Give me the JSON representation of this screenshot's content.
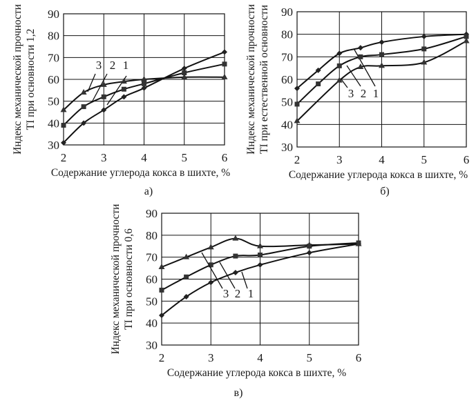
{
  "chart_data": [
    {
      "type": "line",
      "caption": "а)",
      "xlabel": "Содержание углерода кокса в шихте, %",
      "ylabel": [
        "Индекс механической прочности",
        "TI при основности 1,2"
      ],
      "xlim": [
        2,
        6
      ],
      "ylim": [
        30,
        90
      ],
      "xticks": [
        2,
        3,
        4,
        5,
        6
      ],
      "yticks": [
        30,
        40,
        50,
        60,
        70,
        80,
        90
      ],
      "grid": true,
      "x": [
        2,
        2.5,
        3,
        3.5,
        4,
        5,
        6
      ],
      "series": [
        {
          "name": "1",
          "marker": "diamond",
          "values": [
            31,
            40,
            46,
            52,
            56,
            65,
            72.5
          ]
        },
        {
          "name": "2",
          "marker": "square",
          "values": [
            39,
            47.5,
            52,
            55.5,
            58,
            63,
            67
          ]
        },
        {
          "name": "3",
          "marker": "triangle",
          "values": [
            46,
            54,
            57.5,
            59,
            60,
            61,
            61
          ]
        }
      ]
    },
    {
      "type": "line",
      "caption": "б)",
      "xlabel": "Содержание углерода кокса в шихте, %",
      "ylabel": [
        "Индекс механической прочности",
        "TI при естественной основности"
      ],
      "xlim": [
        2,
        6
      ],
      "ylim": [
        30,
        90
      ],
      "xticks": [
        2,
        3,
        4,
        5,
        6
      ],
      "yticks": [
        30,
        40,
        50,
        60,
        70,
        80,
        90
      ],
      "grid": true,
      "x": [
        2,
        2.5,
        3,
        3.5,
        4,
        5,
        6
      ],
      "series": [
        {
          "name": "1",
          "marker": "diamond",
          "values": [
            56,
            64,
            71.5,
            74,
            76.5,
            79,
            80
          ]
        },
        {
          "name": "2",
          "marker": "square",
          "values": [
            49,
            58,
            66,
            70,
            71,
            73.5,
            79
          ]
        },
        {
          "name": "3",
          "marker": "triangle",
          "values": [
            41.5,
            null,
            59.5,
            65.5,
            66,
            67.5,
            77
          ]
        }
      ]
    },
    {
      "type": "line",
      "caption": "в)",
      "xlabel": "Содержание углерода кокса в шихте, %",
      "ylabel": [
        "Индекс механической прочности",
        "TI при основности 0,6"
      ],
      "xlim": [
        2,
        6
      ],
      "ylim": [
        30,
        90
      ],
      "xticks": [
        2,
        3,
        4,
        5,
        6
      ],
      "yticks": [
        30,
        40,
        50,
        60,
        70,
        80,
        90
      ],
      "grid": true,
      "x": [
        2,
        2.5,
        3,
        3.5,
        4,
        5,
        6
      ],
      "series": [
        {
          "name": "1",
          "marker": "diamond",
          "values": [
            43.5,
            52,
            58.5,
            63,
            66.5,
            72,
            76
          ]
        },
        {
          "name": "2",
          "marker": "square",
          "values": [
            55,
            61,
            66.5,
            70.5,
            71,
            75,
            76.5
          ]
        },
        {
          "name": "3",
          "marker": "triangle",
          "values": [
            65.5,
            70,
            74.5,
            78.5,
            75,
            75.5,
            76
          ]
        }
      ]
    }
  ]
}
